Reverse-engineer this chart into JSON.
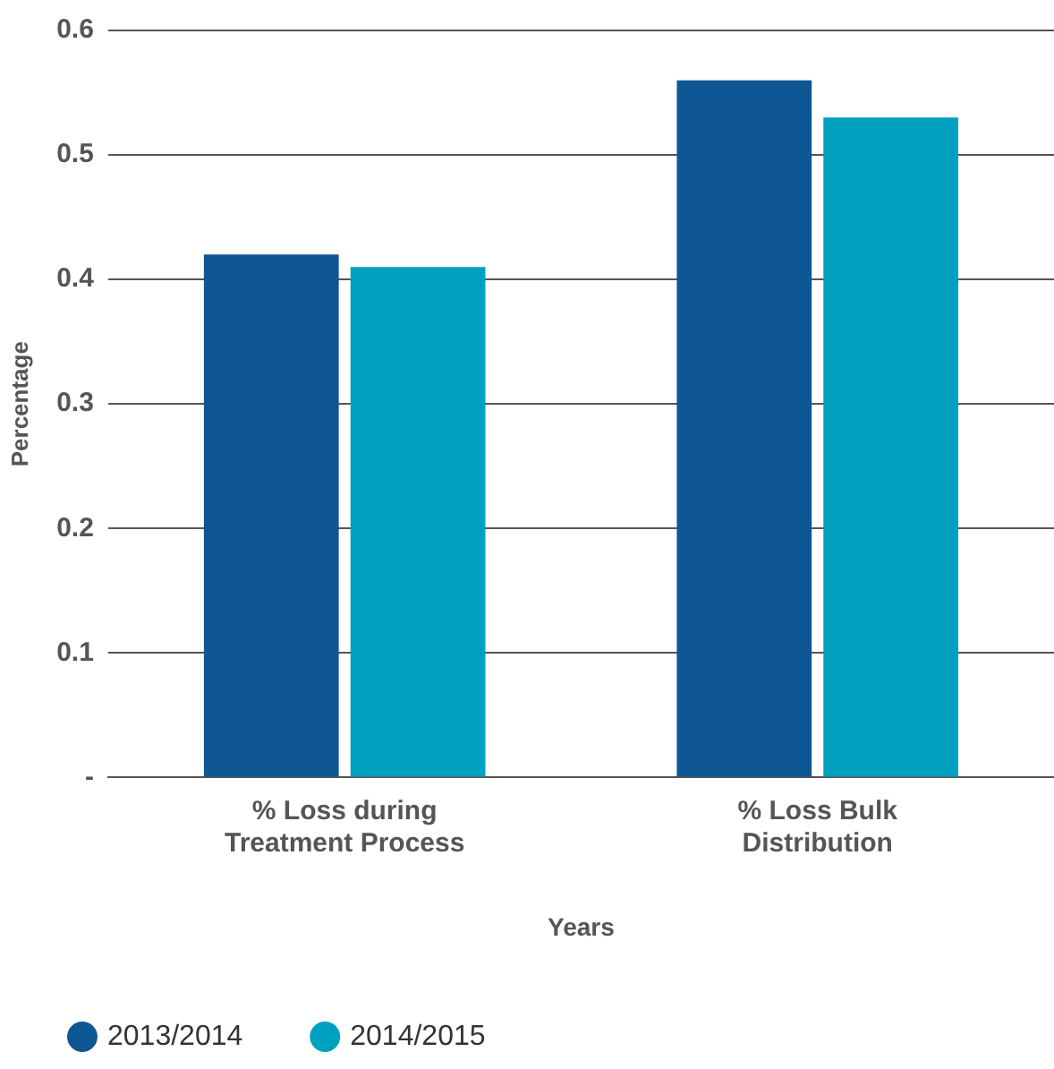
{
  "chart_data": {
    "type": "bar",
    "categories": [
      [
        "% Loss during",
        "Treatment Process"
      ],
      [
        "% Loss Bulk",
        "Distribution"
      ]
    ],
    "series": [
      {
        "name": "2013/2014",
        "color": "#0f5694",
        "values": [
          0.42,
          0.56
        ]
      },
      {
        "name": "2014/2015",
        "color": "#00a0bf",
        "values": [
          0.41,
          0.53
        ]
      }
    ],
    "xlabel": "Years",
    "ylabel": "Percentage",
    "ylim": [
      0,
      0.6
    ],
    "yticks": [
      {
        "value": 0,
        "label": "-"
      },
      0.1,
      0.2,
      0.3,
      0.4,
      0.5,
      0.6
    ],
    "grid": "y",
    "legend": "bottom left"
  }
}
